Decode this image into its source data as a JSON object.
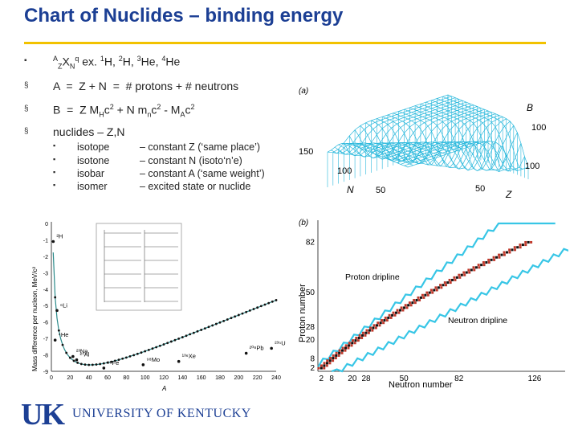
{
  "title": "Chart of Nuclides – binding energy",
  "bullets": {
    "line1": {
      "sup_a": "A",
      "sub_z": "Z",
      "x": "X",
      "sub_n": "N",
      "sup_q": "q",
      "ex": " ex. ",
      "h1": "H, ",
      "h2": "H, ",
      "he3": "He, ",
      "he4": "He",
      "n1": "1",
      "n2": "2",
      "n3": "3",
      "n4": "4"
    },
    "line2": "A  =  Z + N  =  # protons + # neutrons",
    "line3": {
      "a": "B  =  Z M",
      "h": "H",
      "c1": "c",
      "two": "2",
      "b": " + N m",
      "n": "n",
      "c2": "c",
      "two2": "2",
      "c": " - M",
      "A": "A",
      "c3": "c",
      "two3": "2"
    },
    "line4": "nuclides – Z,N",
    "sub": [
      {
        "term": "isotope",
        "def": "– constant Z (‘same place’)"
      },
      {
        "term": "isotone",
        "def": "– constant N (isoto‘n’e)"
      },
      {
        "term": "isobar",
        "def": "– constant A (‘same weight’)"
      },
      {
        "term": "isomer",
        "def": "– excited state or nuclide"
      }
    ]
  },
  "fig_a": {
    "label": "(a)",
    "b": "B",
    "z": "Z",
    "n": "N",
    "ticks": {
      "b100": "100",
      "n150": "150",
      "n100": "100",
      "n50": "50",
      "z100": "100",
      "z50": "50"
    }
  },
  "fig_b": {
    "label": "(b)",
    "y_label": "Proton number",
    "x_label": "Neutron number",
    "y_ticks": [
      "2",
      "8",
      "20",
      "28",
      "50",
      "82"
    ],
    "x_ticks": [
      "2",
      "8",
      "20",
      "28",
      "50",
      "82",
      "126"
    ],
    "proton_dripline": "Proton dripline",
    "neutron_dripline": "Neutron dripline"
  },
  "fig_c": {
    "y_label": "Mass difference per nucleon, MeV/c²",
    "x_label": "A",
    "y_ticks": [
      "0",
      "-1",
      "-2",
      "-3",
      "-4",
      "-5",
      "-6",
      "-7",
      "-8",
      "-9"
    ],
    "x_ticks": [
      "0",
      "20",
      "40",
      "60",
      "80",
      "100",
      "120",
      "140",
      "160",
      "180",
      "200",
      "220",
      "240"
    ],
    "nuclides": [
      "²H",
      "⁶Li",
      "⁴He",
      "²³Na",
      "²⁷Al",
      "⁵⁶Fe",
      "⁹⁸Mo",
      "¹³⁶Xe",
      "²⁰⁸Pb",
      "²³⁵U"
    ]
  },
  "colors": {
    "title": "#1c3f94",
    "rule": "#f2c200",
    "dripline": "#38c6e6",
    "mesh": "#29b8dc"
  },
  "logo": {
    "mark": "UK",
    "text": "UNIVERSITY OF KENTUCKY"
  }
}
